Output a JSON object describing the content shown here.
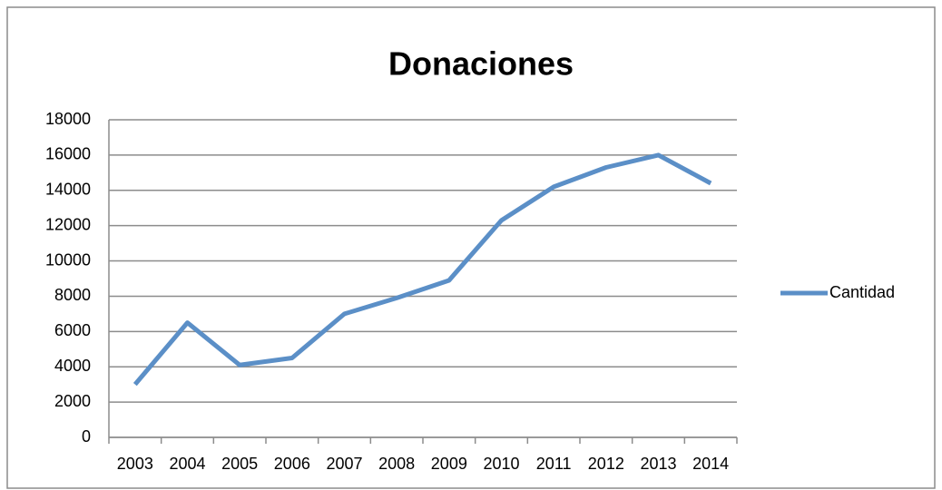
{
  "chart_data": {
    "type": "line",
    "title": "Donaciones",
    "categories": [
      "2003",
      "2004",
      "2005",
      "2006",
      "2007",
      "2008",
      "2009",
      "2010",
      "2011",
      "2012",
      "2013",
      "2014"
    ],
    "series": [
      {
        "name": "Cantidad",
        "color": "#5b8fc7",
        "values": [
          3000,
          6500,
          4100,
          4500,
          7000,
          7900,
          8900,
          12300,
          14200,
          15300,
          16000,
          14400
        ]
      }
    ],
    "ylim": [
      0,
      18000
    ],
    "yticks": [
      0,
      2000,
      4000,
      6000,
      8000,
      10000,
      12000,
      14000,
      16000,
      18000
    ],
    "grid": true,
    "legend": "right"
  }
}
